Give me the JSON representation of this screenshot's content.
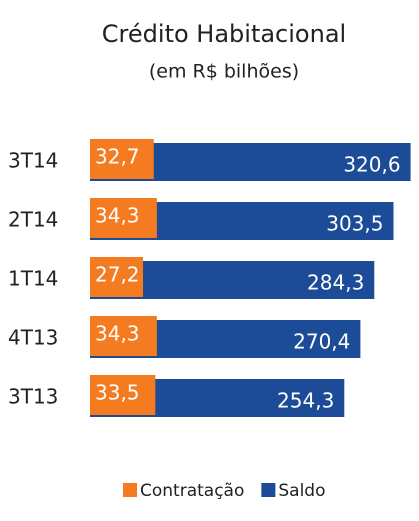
{
  "chart_data": {
    "type": "bar",
    "orientation": "horizontal",
    "title": "Crédito Habitacional",
    "subtitle": "(em R$ bilhões)",
    "categories": [
      "3T14",
      "2T14",
      "1T14",
      "4T13",
      "3T13"
    ],
    "series": [
      {
        "name": "Contratação",
        "color": "#f47b20",
        "values": [
          32.7,
          34.3,
          27.2,
          34.3,
          33.5
        ],
        "value_labels": [
          "32,7",
          "34,3",
          "27,2",
          "34,3",
          "33,5"
        ]
      },
      {
        "name": "Saldo",
        "color": "#1c4c98",
        "values": [
          320.6,
          303.5,
          284.3,
          270.4,
          254.3
        ],
        "value_labels": [
          "320,6",
          "303,5",
          "284,3",
          "270,4",
          "254,3"
        ]
      }
    ]
  }
}
